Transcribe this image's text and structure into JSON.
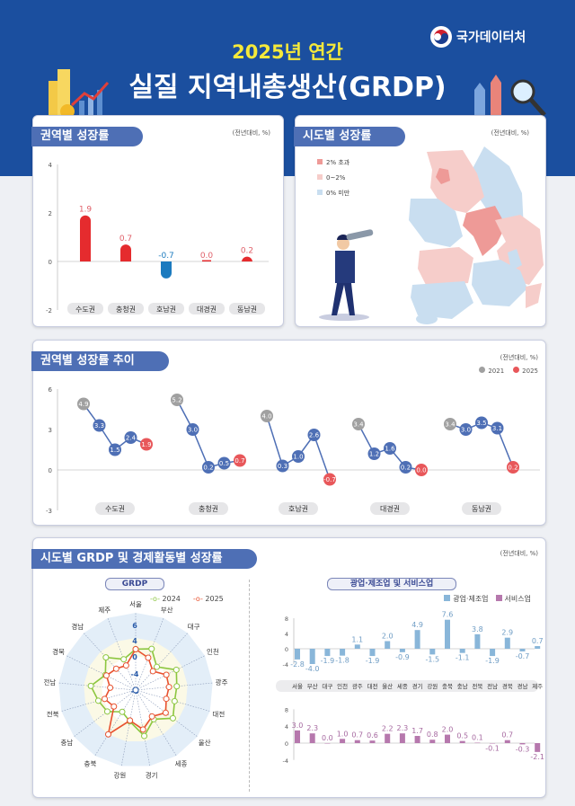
{
  "header": {
    "subtitle": "2025년 연간",
    "title": "실질 지역내총생산(GRDP)",
    "agency": "국가데이터처"
  },
  "colors": {
    "header": "#1b4f9f",
    "pos": "#e52b2e",
    "neg": "#1c7bbf",
    "y2021": "#a0a0a0",
    "mid": "#4e6fb5",
    "y2025": "#e8575a",
    "g2024": "#8cc63f",
    "r2025": "#e8522f",
    "mfg": "#89b6d9",
    "svc": "#b678ad"
  },
  "panels": {
    "p1": "권역별 성장률",
    "p2": "시도별 성장률",
    "p3": "권역별 성장률 추이",
    "p4": "시도별 GRDP 및 경제활동별 성장률",
    "unit": "(전년대비, %)"
  },
  "map": {
    "legend": [
      {
        "label": "2% 초과",
        "color": "#ee9a97"
      },
      {
        "label": "0~2%",
        "color": "#f6cdca"
      },
      {
        "label": "0% 미만",
        "color": "#c9def0"
      }
    ]
  },
  "chart_data": [
    {
      "type": "bar",
      "title": "권역별 성장률",
      "categories": [
        "수도권",
        "충청권",
        "호남권",
        "대경권",
        "동남권"
      ],
      "values": [
        1.9,
        0.7,
        -0.7,
        0.0,
        0.2
      ],
      "ylim": [
        -2,
        4
      ],
      "yticks": [
        4,
        2,
        0,
        -2
      ]
    },
    {
      "type": "line",
      "title": "권역별 성장률 추이",
      "legend": [
        "2021",
        "2025"
      ],
      "legend_position": "top-right",
      "ylim": [
        -3,
        6
      ],
      "yticks": [
        6,
        3,
        0,
        -3
      ],
      "series": [
        {
          "name": "수도권",
          "values": [
            4.9,
            3.3,
            1.5,
            2.4,
            1.9
          ]
        },
        {
          "name": "충청권",
          "values": [
            5.2,
            3.0,
            0.2,
            0.5,
            0.7
          ]
        },
        {
          "name": "호남권",
          "values": [
            4.0,
            0.3,
            1.0,
            2.6,
            -0.7
          ]
        },
        {
          "name": "대경권",
          "values": [
            3.4,
            1.2,
            1.6,
            0.2,
            0.0
          ]
        },
        {
          "name": "동남권",
          "values": [
            3.4,
            3.0,
            3.5,
            3.1,
            0.2
          ]
        }
      ]
    },
    {
      "type": "radar",
      "title": "GRDP",
      "categories": [
        "서울",
        "부산",
        "대구",
        "인천",
        "광주",
        "대전",
        "울산",
        "세종",
        "경기",
        "강원",
        "충북",
        "충남",
        "전북",
        "전남",
        "경북",
        "경남",
        "제주"
      ],
      "rticks": [
        6,
        4,
        0,
        -4,
        -6
      ],
      "rlim": [
        -6,
        6
      ],
      "series": [
        {
          "name": "2024",
          "values": [
            1.7,
            2.5,
            -0.6,
            2.8,
            1.8,
            1.6,
            3.1,
            0.1,
            3.1,
            -0.5,
            -2.0,
            0.4,
            1.2,
            2.7,
            0.0,
            2.5,
            -0.2
          ]
        },
        {
          "name": "2025",
          "values": [
            1.7,
            0.2,
            -2.0,
            0.1,
            -0.1,
            -0.5,
            0.9,
            -0.7,
            1.5,
            -0.7,
            4.4,
            -1.6,
            -0.4,
            -2.0,
            -0.3,
            -1.2,
            -1.8
          ]
        }
      ]
    },
    {
      "type": "bar",
      "title": "광업·제조업 및 서비스업",
      "categories": [
        "서울",
        "부산",
        "대구",
        "인천",
        "광주",
        "대전",
        "울산",
        "세종",
        "경기",
        "강원",
        "충북",
        "충남",
        "전북",
        "전남",
        "경북",
        "경남",
        "제주"
      ],
      "ylim": [
        -4,
        8
      ],
      "yticks": [
        8,
        4,
        0,
        -4
      ],
      "series": [
        {
          "name": "광업·제조업",
          "values": [
            -2.8,
            -4.0,
            -1.9,
            -1.8,
            1.1,
            -1.9,
            2.0,
            -0.9,
            4.9,
            -1.5,
            7.6,
            -1.1,
            3.8,
            -1.9,
            2.9,
            -0.7,
            0.7
          ]
        },
        {
          "name": "서비스업",
          "values": [
            3.0,
            2.3,
            0.0,
            1.0,
            0.7,
            0.6,
            2.2,
            2.3,
            1.7,
            0.8,
            2.0,
            0.5,
            0.1,
            -0.1,
            0.7,
            -0.3,
            -2.1
          ]
        }
      ]
    }
  ]
}
